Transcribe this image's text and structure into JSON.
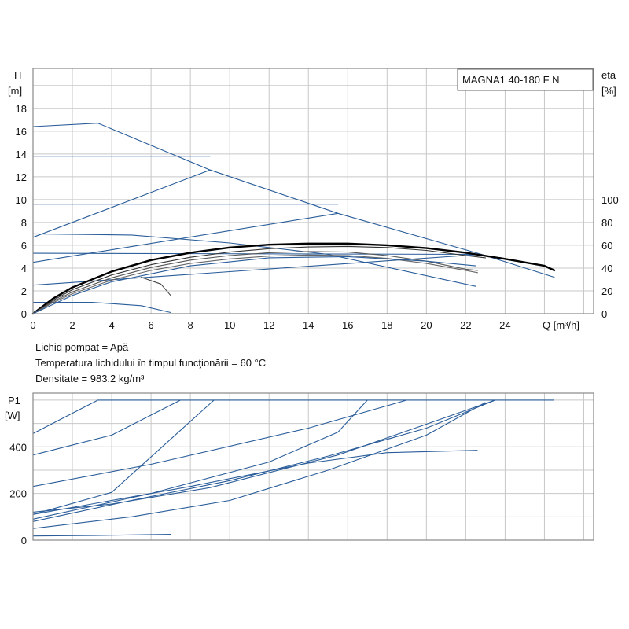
{
  "chart_data": [
    {
      "type": "line",
      "title": "MAGNA1 40-180 F N",
      "xlabel": "Q [m³/h]",
      "ylabel": "H [m]",
      "ylabel_line1": "H",
      "ylabel_line2": "[m]",
      "y2label": "eta [%]",
      "y2label_line1": "eta",
      "y2label_line2": "[%]",
      "xlabel_display": "Q [m³/h]",
      "xlim": [
        0,
        28.5
      ],
      "ylim": [
        0,
        21.5
      ],
      "y2lim": [
        0,
        100
      ],
      "x_ticks": [
        0,
        2,
        4,
        6,
        8,
        10,
        12,
        14,
        16,
        18,
        20,
        22,
        24
      ],
      "y_ticks": [
        0,
        2,
        4,
        6,
        8,
        10,
        12,
        14,
        16,
        18
      ],
      "y2_ticks": [
        0,
        20,
        40,
        60,
        80,
        100
      ],
      "grid": true,
      "series": [
        {
          "role": "max-curve",
          "color": "#2a5d9a",
          "points": [
            [
              0,
              16.4
            ],
            [
              3.3,
              16.7
            ],
            [
              9,
              12.6
            ],
            [
              15.5,
              8.8
            ],
            [
              22.8,
              5.2
            ],
            [
              26.5,
              3.2
            ]
          ]
        },
        {
          "role": "constant-pressure",
          "color": "#2a5d9a",
          "points": [
            [
              0,
              13.8
            ],
            [
              9,
              13.8
            ]
          ]
        },
        {
          "role": "constant-pressure",
          "color": "#2a5d9a",
          "points": [
            [
              0,
              9.6
            ],
            [
              15.5,
              9.6
            ]
          ]
        },
        {
          "role": "constant-pressure",
          "color": "#2a5d9a",
          "points": [
            [
              0,
              5.3
            ],
            [
              22.8,
              5.2
            ]
          ]
        },
        {
          "role": "proportional-pressure",
          "color": "#2a5d9a",
          "points": [
            [
              0,
              6.7
            ],
            [
              9,
              12.6
            ]
          ]
        },
        {
          "role": "proportional-pressure",
          "color": "#2a5d9a",
          "points": [
            [
              0,
              4.5
            ],
            [
              15.5,
              8.8
            ]
          ]
        },
        {
          "role": "proportional-pressure",
          "color": "#2a5d9a",
          "points": [
            [
              0,
              2.5
            ],
            [
              22.8,
              5.2
            ]
          ]
        },
        {
          "role": "speed-curve",
          "color": "#2a5d9a",
          "points": [
            [
              0,
              7.0
            ],
            [
              5,
              6.9
            ],
            [
              10,
              6.2
            ],
            [
              15,
              5.2
            ],
            [
              22.5,
              2.4
            ]
          ]
        },
        {
          "role": "speed-curve",
          "color": "#2a5d9a",
          "points": [
            [
              0,
              1.0
            ],
            [
              3,
              1.0
            ],
            [
              5.5,
              0.7
            ],
            [
              7.0,
              0.1
            ]
          ]
        },
        {
          "role": "speed-curve",
          "color": "#444444",
          "points": [
            [
              5.5,
              3.2
            ],
            [
              6.5,
              2.6
            ],
            [
              7.0,
              1.6
            ]
          ]
        },
        {
          "role": "efficiency",
          "color": "#000000",
          "width": 2.4,
          "points": [
            [
              0,
              0
            ],
            [
              1,
              1.3
            ],
            [
              2,
              2.3
            ],
            [
              4,
              3.7
            ],
            [
              6,
              4.7
            ],
            [
              8,
              5.35
            ],
            [
              10,
              5.8
            ],
            [
              12,
              6.05
            ],
            [
              14,
              6.15
            ],
            [
              16,
              6.15
            ],
            [
              18,
              6.0
            ],
            [
              20,
              5.75
            ],
            [
              22,
              5.35
            ],
            [
              24,
              4.8
            ],
            [
              26,
              4.2
            ],
            [
              26.5,
              3.8
            ]
          ]
        },
        {
          "role": "efficiency",
          "color": "#333333",
          "points": [
            [
              0,
              0
            ],
            [
              1,
              1.15
            ],
            [
              2,
              2.1
            ],
            [
              4,
              3.4
            ],
            [
              6,
              4.3
            ],
            [
              8,
              4.95
            ],
            [
              10,
              5.4
            ],
            [
              12,
              5.7
            ],
            [
              14,
              5.85
            ],
            [
              16,
              5.9
            ],
            [
              18,
              5.8
            ],
            [
              20,
              5.55
            ],
            [
              22,
              5.1
            ],
            [
              23,
              4.9
            ]
          ]
        },
        {
          "role": "efficiency",
          "color": "#555555",
          "points": [
            [
              0,
              0
            ],
            [
              1,
              1.05
            ],
            [
              2,
              1.9
            ],
            [
              4,
              3.15
            ],
            [
              6,
              4.05
            ],
            [
              8,
              4.7
            ],
            [
              10,
              5.1
            ],
            [
              12,
              5.35
            ],
            [
              14,
              5.45
            ],
            [
              16,
              5.4
            ],
            [
              18,
              5.1
            ],
            [
              20,
              4.6
            ],
            [
              22,
              3.9
            ],
            [
              22.6,
              3.8
            ]
          ]
        },
        {
          "role": "efficiency",
          "color": "#666666",
          "points": [
            [
              0,
              0
            ],
            [
              1,
              0.95
            ],
            [
              2,
              1.75
            ],
            [
              4,
              2.95
            ],
            [
              6,
              3.8
            ],
            [
              8,
              4.4
            ],
            [
              10,
              4.8
            ],
            [
              12,
              5.05
            ],
            [
              14,
              5.15
            ],
            [
              16,
              5.1
            ],
            [
              18,
              4.85
            ],
            [
              20,
              4.4
            ],
            [
              22,
              3.8
            ],
            [
              22.6,
              3.6
            ]
          ]
        },
        {
          "role": "efficiency",
          "color": "#2a5d9a",
          "points": [
            [
              0,
              0
            ],
            [
              2,
              1.6
            ],
            [
              4,
              2.8
            ],
            [
              8,
              4.2
            ],
            [
              12,
              4.9
            ],
            [
              16,
              5.0
            ],
            [
              20,
              4.6
            ],
            [
              22.5,
              4.2
            ]
          ]
        }
      ]
    },
    {
      "type": "line",
      "ylabel": "P1 [W]",
      "ylabel_line1": "P1",
      "ylabel_line2": "[W]",
      "xlim": [
        0,
        28.5
      ],
      "ylim": [
        0,
        630
      ],
      "y_ticks": [
        0,
        200,
        400
      ],
      "grid": true,
      "series": [
        {
          "role": "max-power",
          "color": "#2a5d9a",
          "points": [
            [
              0,
              457
            ],
            [
              3.3,
              600
            ],
            [
              26.5,
              600
            ]
          ]
        },
        {
          "role": "power",
          "color": "#2a5d9a",
          "points": [
            [
              0,
              365
            ],
            [
              4,
              450
            ],
            [
              7.5,
              600
            ]
          ]
        },
        {
          "role": "power",
          "color": "#2a5d9a",
          "points": [
            [
              0,
              230
            ],
            [
              6,
              325
            ],
            [
              14,
              480
            ],
            [
              19,
              600
            ]
          ]
        },
        {
          "role": "power",
          "color": "#2a5d9a",
          "points": [
            [
              0,
              110
            ],
            [
              4,
              205
            ],
            [
              9.2,
              600
            ]
          ]
        },
        {
          "role": "power",
          "color": "#2a5d9a",
          "points": [
            [
              0,
              120
            ],
            [
              4,
              155
            ],
            [
              9,
              225
            ],
            [
              15.5,
              365
            ],
            [
              23.5,
              600
            ]
          ]
        },
        {
          "role": "power",
          "color": "#2a5d9a",
          "points": [
            [
              0,
              90
            ],
            [
              6,
              200
            ],
            [
              12,
              335
            ],
            [
              15.5,
              463
            ],
            [
              17,
              600
            ]
          ]
        },
        {
          "role": "power",
          "color": "#2a5d9a",
          "points": [
            [
              0,
              110
            ],
            [
              8,
              230
            ],
            [
              14,
              330
            ],
            [
              18,
              375
            ],
            [
              22.6,
              385
            ]
          ]
        },
        {
          "role": "power",
          "color": "#2a5d9a",
          "points": [
            [
              0,
              80
            ],
            [
              5,
              170
            ],
            [
              10,
              255
            ],
            [
              15,
              360
            ],
            [
              20,
              480
            ],
            [
              23.5,
              600
            ]
          ]
        },
        {
          "role": "power",
          "color": "#2a5d9a",
          "points": [
            [
              0,
              50
            ],
            [
              5,
              100
            ],
            [
              10,
              170
            ],
            [
              15,
              300
            ],
            [
              20,
              450
            ],
            [
              23,
              590
            ]
          ]
        },
        {
          "role": "power",
          "color": "#2a5d9a",
          "points": [
            [
              0,
              18
            ],
            [
              3,
              20
            ],
            [
              7,
              25
            ]
          ]
        }
      ]
    }
  ],
  "info": {
    "line1": "Lichid pompat = Apă",
    "line2": "Temperatura lichidului în timpul funcţionării = 60 °C",
    "line3": "Densitate = 983.2 kg/m³"
  }
}
